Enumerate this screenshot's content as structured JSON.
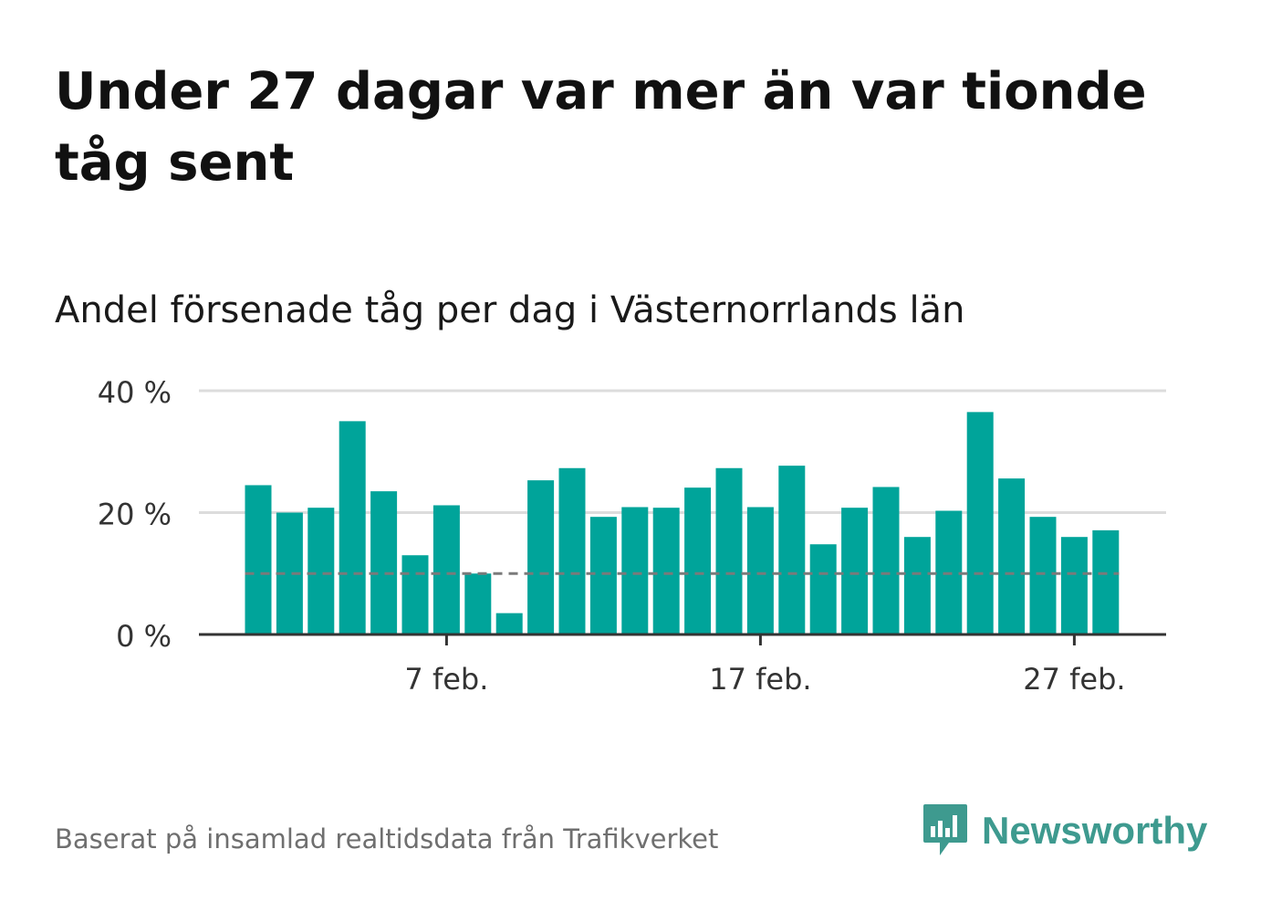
{
  "title": "Under 27 dagar var mer än var tionde tåg sent",
  "subtitle": "Andel försenade tåg per dag i Västernorrlands län",
  "source": "Baserat på insamlad realtidsdata från Trafikverket",
  "logo": {
    "text": "Newsworthy",
    "icon": "newsworthy-chart-bubble-icon"
  },
  "colors": {
    "bar": "#00a49a",
    "grid": "#dcdcdc",
    "axis": "#333333",
    "reference": "#7a7a7a",
    "logo": "#3e9a8f"
  },
  "chart_data": {
    "type": "bar",
    "title": "Andel försenade tåg per dag i Västernorrlands län",
    "x_dates": [
      "1 feb.",
      "2 feb.",
      "3 feb.",
      "4 feb.",
      "5 feb.",
      "6 feb.",
      "7 feb.",
      "8 feb.",
      "9 feb.",
      "10 feb.",
      "11 feb.",
      "12 feb.",
      "13 feb.",
      "14 feb.",
      "15 feb.",
      "16 feb.",
      "17 feb.",
      "18 feb.",
      "19 feb.",
      "20 feb.",
      "21 feb.",
      "22 feb.",
      "23 feb.",
      "24 feb.",
      "25 feb.",
      "26 feb.",
      "27 feb.",
      "28 feb."
    ],
    "values": [
      24.5,
      20.0,
      20.8,
      35.0,
      23.5,
      13.0,
      21.2,
      10.0,
      3.5,
      25.3,
      27.3,
      19.3,
      20.9,
      20.8,
      24.1,
      27.3,
      20.9,
      27.7,
      14.8,
      20.8,
      24.2,
      16.0,
      20.3,
      36.5,
      25.6,
      19.3,
      16.0,
      17.1
    ],
    "reference_line": 10,
    "ylim": [
      0,
      40
    ],
    "y_ticks": [
      0,
      20,
      40
    ],
    "y_tick_labels": [
      "0 %",
      "20 %",
      "40 %"
    ],
    "x_ticks": [
      "7 feb.",
      "17 feb.",
      "27 feb."
    ],
    "x_tick_labels": [
      "7 feb.",
      "17 feb.",
      "27 feb."
    ],
    "grid": true,
    "legend": false
  }
}
